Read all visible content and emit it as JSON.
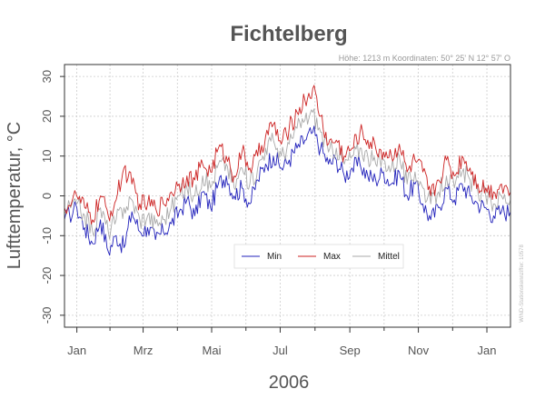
{
  "chart_data": {
    "type": "line",
    "title": "Fichtelberg",
    "subtitle": "Höhe: 1213 m   Koordinaten: 50° 25' N  12° 57' O",
    "xlabel": "2006",
    "ylabel": "Lufttemperatur, °C",
    "credit": "WIND-Stationskennziffer: 10578",
    "ylim": [
      -33,
      33
    ],
    "yticks": [
      "30",
      "20",
      "10",
      "0",
      "-10",
      "-20",
      "-30"
    ],
    "ytick_values": [
      30,
      20,
      10,
      0,
      -10,
      -20,
      -30
    ],
    "xlim": [
      "2005-12-21",
      "2007-01-22"
    ],
    "xticks": [
      {
        "label": "Jan",
        "date": "2006-01-01"
      },
      {
        "label": "Mrz",
        "date": "2006-03-01"
      },
      {
        "label": "Mai",
        "date": "2006-05-01"
      },
      {
        "label": "Jul",
        "date": "2006-07-01"
      },
      {
        "label": "Sep",
        "date": "2006-09-01"
      },
      {
        "label": "Nov",
        "date": "2006-11-01"
      },
      {
        "label": "Jan",
        "date": "2007-01-01"
      }
    ],
    "grid": true,
    "legend_position": "center-bottom",
    "x": [
      "2005-12-21",
      "2006-01-01",
      "2006-01-08",
      "2006-01-15",
      "2006-01-22",
      "2006-01-29",
      "2006-02-05",
      "2006-02-12",
      "2006-02-19",
      "2006-02-26",
      "2006-03-05",
      "2006-03-12",
      "2006-03-19",
      "2006-03-26",
      "2006-04-02",
      "2006-04-09",
      "2006-04-16",
      "2006-04-23",
      "2006-04-30",
      "2006-05-07",
      "2006-05-14",
      "2006-05-21",
      "2006-05-28",
      "2006-06-04",
      "2006-06-11",
      "2006-06-18",
      "2006-06-25",
      "2006-07-02",
      "2006-07-09",
      "2006-07-16",
      "2006-07-23",
      "2006-07-30",
      "2006-08-06",
      "2006-08-13",
      "2006-08-20",
      "2006-08-27",
      "2006-09-03",
      "2006-09-10",
      "2006-09-17",
      "2006-09-24",
      "2006-10-01",
      "2006-10-08",
      "2006-10-15",
      "2006-10-22",
      "2006-10-29",
      "2006-11-05",
      "2006-11-12",
      "2006-11-19",
      "2006-11-26",
      "2006-12-03",
      "2006-12-10",
      "2006-12-17",
      "2006-12-24",
      "2006-12-31",
      "2007-01-07",
      "2007-01-14",
      "2007-01-22"
    ],
    "series": [
      {
        "name": "Min",
        "color": "#2222bb",
        "values": [
          -6,
          -3,
          -8,
          -12,
          -6,
          -14,
          -10,
          -13,
          -4,
          -9,
          -8,
          -11,
          -9,
          -7,
          -4,
          -1,
          -5,
          1,
          -3,
          3,
          5,
          0,
          2,
          -2,
          4,
          8,
          10,
          7,
          9,
          12,
          14,
          16,
          12,
          8,
          9,
          5,
          7,
          8,
          5,
          4,
          6,
          3,
          6,
          0,
          3,
          -2,
          -6,
          -3,
          2,
          -1,
          3,
          0,
          -2,
          -3,
          -5,
          -4,
          -4
        ]
      },
      {
        "name": "Max",
        "color": "#cc2222",
        "values": [
          -3,
          0,
          -3,
          -6,
          0,
          -5,
          -1,
          7,
          3,
          -2,
          -2,
          -3,
          -2,
          1,
          3,
          5,
          4,
          8,
          6,
          12,
          10,
          5,
          11,
          7,
          10,
          15,
          18,
          13,
          17,
          21,
          24,
          27,
          20,
          13,
          14,
          10,
          12,
          16,
          14,
          12,
          11,
          10,
          13,
          6,
          9,
          6,
          0,
          4,
          9,
          5,
          10,
          7,
          3,
          2,
          1,
          3,
          1
        ]
      },
      {
        "name": "Mittel",
        "color": "#aaaaaa",
        "values": [
          -4,
          -2,
          -5,
          -9,
          -3,
          -9,
          -6,
          -3,
          -1,
          -6,
          -5,
          -7,
          -6,
          -3,
          0,
          2,
          0,
          5,
          2,
          8,
          8,
          2,
          7,
          3,
          7,
          12,
          14,
          10,
          13,
          17,
          19,
          21,
          16,
          11,
          12,
          8,
          10,
          12,
          10,
          8,
          9,
          7,
          10,
          3,
          6,
          2,
          -2,
          1,
          5,
          2,
          6,
          4,
          1,
          0,
          -2,
          0,
          -1
        ]
      }
    ]
  }
}
